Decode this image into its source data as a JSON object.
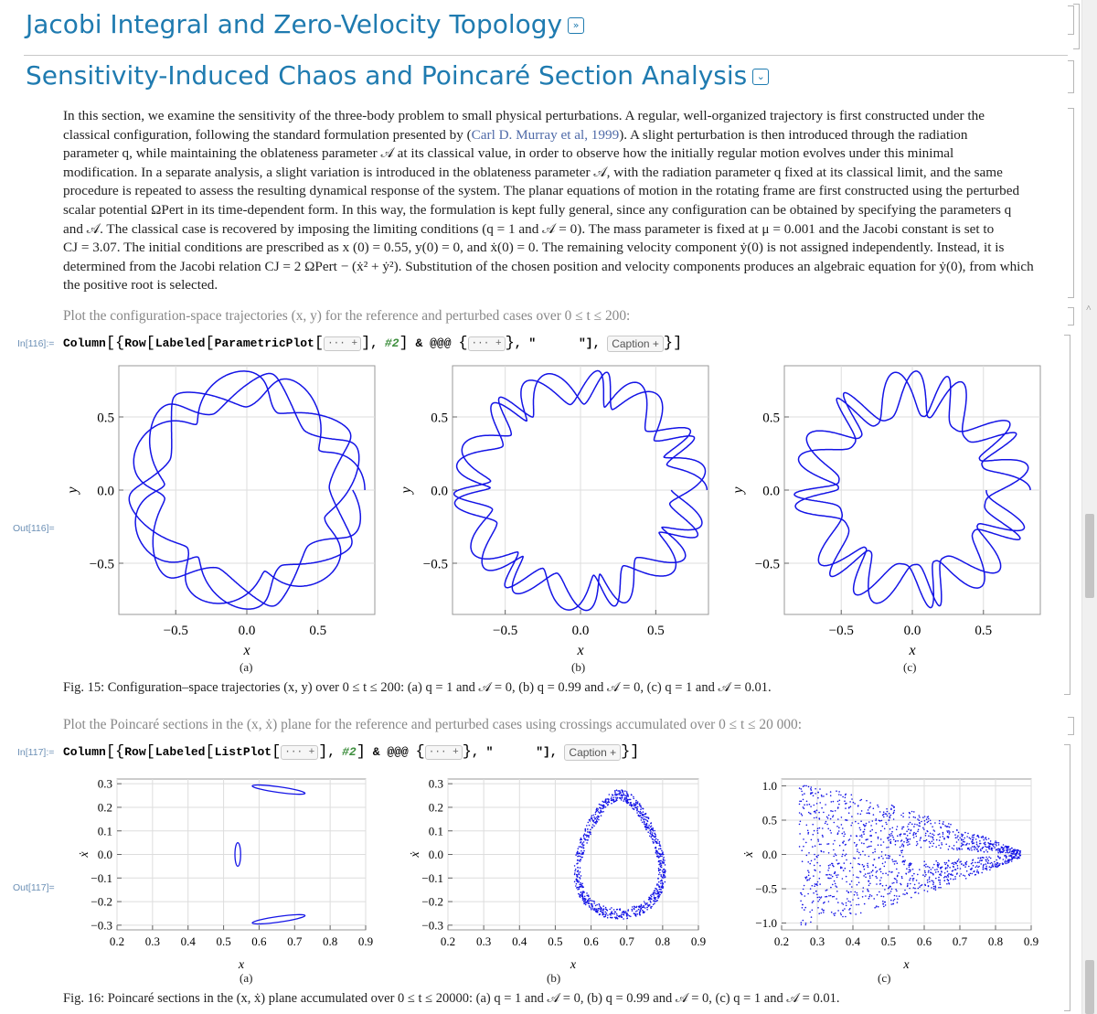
{
  "sections": {
    "jacobi_title": "Jacobi Integral and Zero-Velocity Topology",
    "chaos_title": "Sensitivity-Induced Chaos and Poincaré Section Analysis"
  },
  "paragraph": {
    "l1": "In this section, we examine the sensitivity of the three-body problem to small physical perturbations. A regular, well-organized trajectory is first constructed under the",
    "l2a": "classical configuration, following the standard formulation presented by (",
    "l2link": "Carl D. Murray et al, 1999",
    "l2b": "). A slight perturbation is then introduced through the radiation",
    "l3": "parameter q, while maintaining the oblateness parameter 𝒜 at its classical value, in order to observe how the initially regular motion evolves under this minimal",
    "l4": "modification. In a separate analysis, a slight variation is introduced in the oblateness parameter 𝒜, with the radiation parameter q fixed at its classical limit, and the same",
    "l5": "procedure is repeated to assess the resulting dynamical response of the system. The planar equations of motion in the rotating frame are first constructed using the perturbed",
    "l6": "scalar potential ΩPert in its time-dependent form. In this way, the formulation is kept fully general, since any configuration can be obtained by specifying the parameters q",
    "l7": "and 𝒜. The classical case is recovered by imposing the limiting conditions (q = 1 and 𝒜 = 0). The mass parameter is fixed at μ = 0.001 and the Jacobi constant is set to",
    "l8": "CJ = 3.07. The initial conditions are prescribed as x (0) = 0.55, y(0) = 0, and ẋ(0) = 0. The remaining velocity component ẏ(0) is not assigned independently. Instead, it is",
    "l9": "determined from the Jacobi relation CJ = 2 ΩPert − (ẋ² + ẏ²). Substitution of the chosen position and velocity components produces an algebraic equation for ẏ(0), from which",
    "l10": "the positive root is selected."
  },
  "cells": {
    "text116": "Plot the configuration-space trajectories (x, y) for the reference and perturbed cases over 0 ≤ t ≤ 200:",
    "in116": "In[116]:=",
    "out116": "Out[116]=",
    "text117": "Plot the Poincaré sections in the (x, ẋ) plane for the reference and perturbed cases using crossings accumulated over 0 ≤ t ≤ 20 000:",
    "in117": "In[117]:=",
    "out117": "Out[117]="
  },
  "code116": {
    "column": "Column",
    "row": "Row",
    "labeled": "Labeled",
    "plotfn": "ParametricPlot",
    "elide": "··· +",
    "slot": "#2",
    "apply": "& @@@",
    "quote_open": ", \"",
    "quote_close": "\"],",
    "caption": "Caption +"
  },
  "code117": {
    "column": "Column",
    "row": "Row",
    "labeled": "Labeled",
    "plotfn": "ListPlot",
    "elide": "··· +",
    "slot": "#2",
    "apply": "& @@@",
    "quote_open": ", \"",
    "quote_close": "\"],",
    "caption": "Caption +"
  },
  "captions": {
    "fig15": "Fig. 15: Configuration–space trajectories (x, y) over 0 ≤ t ≤ 200: (a) q = 1 and 𝒜 = 0, (b) q = 0.99 and 𝒜 = 0, (c) q = 1 and 𝒜 = 0.01.",
    "fig16": "Fig. 16: Poincaré sections in the (x, ẋ) plane accumulated over 0 ≤ t ≤ 20000: (a) q = 1 and 𝒜 = 0, (b) q = 0.99 and 𝒜 = 0, (c) q = 1 and 𝒜 = 0.01.",
    "sub_a": "(a)",
    "sub_b": "(b)",
    "sub_c": "(c)"
  },
  "colors": {
    "curve": "#1414e6",
    "title": "#1f7bb0"
  },
  "chart_data": [
    {
      "type": "line",
      "panel": "Fig15a",
      "xlabel": "x",
      "ylabel": "y",
      "xlim": [
        -0.9,
        0.9
      ],
      "ylim": [
        -0.85,
        0.85
      ],
      "xticks": [
        -0.5,
        0.0,
        0.5
      ],
      "yticks": [
        -0.5,
        0.0,
        0.5
      ],
      "series": [
        {
          "name": "q=1, A=0",
          "shape": "rosette",
          "lobes": 5,
          "r_inner": 0.58,
          "r_outer": 0.83
        }
      ]
    },
    {
      "type": "line",
      "panel": "Fig15b",
      "xlabel": "x",
      "ylabel": "y",
      "xlim": [
        -0.85,
        0.85
      ],
      "ylim": [
        -0.85,
        0.85
      ],
      "xticks": [
        -0.5,
        0.0,
        0.5
      ],
      "yticks": [
        -0.5,
        0.0,
        0.5
      ],
      "series": [
        {
          "name": "q=0.99, A=0",
          "shape": "rosette",
          "lobes": 13,
          "r_inner": 0.6,
          "r_outer": 0.84
        }
      ]
    },
    {
      "type": "line",
      "panel": "Fig15c",
      "xlabel": "x",
      "ylabel": "y",
      "xlim": [
        -0.9,
        0.9
      ],
      "ylim": [
        -0.85,
        0.85
      ],
      "xticks": [
        -0.5,
        0.0,
        0.5
      ],
      "yticks": [
        -0.5,
        0.0,
        0.5
      ],
      "series": [
        {
          "name": "q=1, A=0.01",
          "shape": "rosette",
          "lobes": 11,
          "r_inner": 0.52,
          "r_outer": 0.83
        }
      ]
    },
    {
      "type": "scatter",
      "panel": "Fig16a",
      "xlabel": "x",
      "ylabel": "ẋ",
      "xlim": [
        0.2,
        0.9
      ],
      "ylim": [
        -0.32,
        0.32
      ],
      "xticks": [
        0.2,
        0.3,
        0.4,
        0.5,
        0.6,
        0.7,
        0.8,
        0.9
      ],
      "yticks": [
        0.3,
        0.2,
        0.1,
        0.0,
        -0.1,
        -0.2,
        -0.3
      ],
      "series": [
        {
          "name": "island-center",
          "cx": 0.54,
          "cy": 0,
          "rx": 0.008,
          "ry": 0.05
        },
        {
          "name": "island-top",
          "cx": 0.655,
          "cy": 0.275,
          "rx": 0.075,
          "ry": 0.012
        },
        {
          "name": "island-bottom",
          "cx": 0.655,
          "cy": -0.275,
          "rx": 0.075,
          "ry": 0.012
        }
      ]
    },
    {
      "type": "scatter",
      "panel": "Fig16b",
      "xlabel": "x",
      "ylabel": "ẋ",
      "xlim": [
        0.2,
        0.9
      ],
      "ylim": [
        -0.32,
        0.32
      ],
      "xticks": [
        0.2,
        0.3,
        0.4,
        0.5,
        0.6,
        0.7,
        0.8,
        0.9
      ],
      "yticks": [
        0.3,
        0.2,
        0.1,
        0.0,
        -0.1,
        -0.2,
        -0.3
      ],
      "series": [
        {
          "name": "chaotic ring",
          "cx": 0.68,
          "cy": 0,
          "rx": 0.12,
          "ry": 0.27
        }
      ]
    },
    {
      "type": "scatter",
      "panel": "Fig16c",
      "xlabel": "x",
      "ylabel": "ẋ",
      "xlim": [
        0.2,
        0.9
      ],
      "ylim": [
        -1.1,
        1.1
      ],
      "xticks": [
        0.2,
        0.3,
        0.4,
        0.5,
        0.6,
        0.7,
        0.8,
        0.9
      ],
      "yticks": [
        1.0,
        0.5,
        0.0,
        -0.5,
        -1.0
      ],
      "series": [
        {
          "name": "chaotic sea",
          "extent_x": [
            0.25,
            0.87
          ],
          "extent_y": [
            -1.0,
            1.0
          ]
        }
      ]
    }
  ]
}
